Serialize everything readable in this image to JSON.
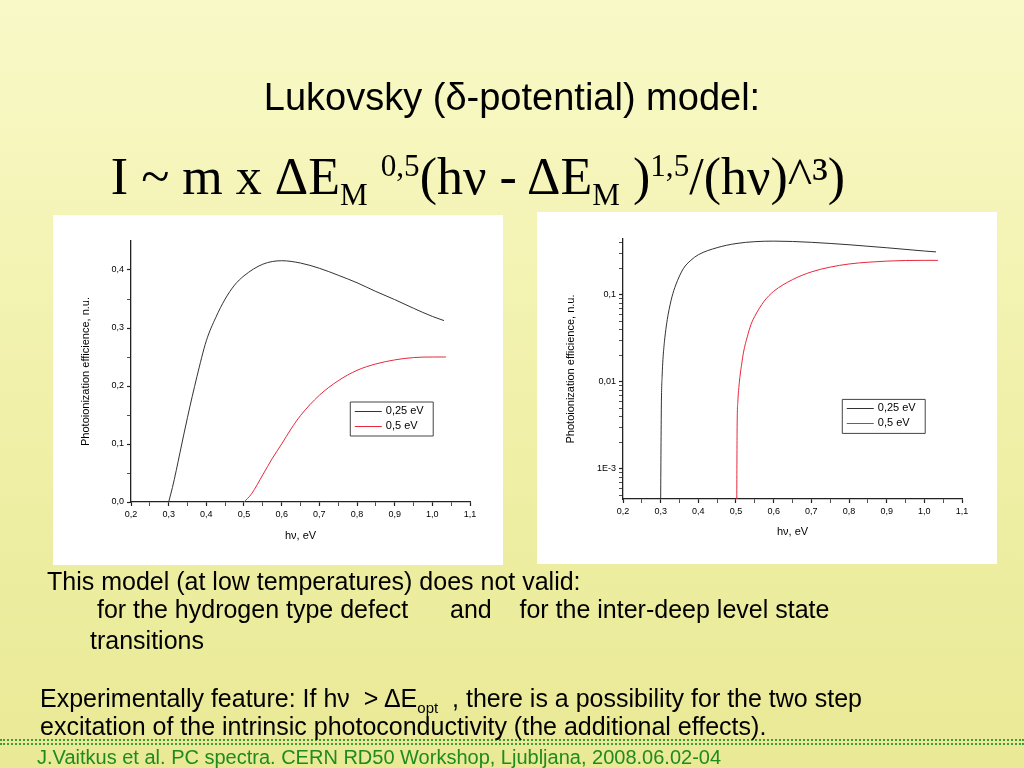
{
  "chart_data": [
    {
      "type": "other",
      "title": "Lukovsky (δ-potential) model:",
      "subtitle": "I ~ m x ΔE$_{M}$ $^{0,5}$(hν - ΔE$_{M}$ )$^{1,5}$/(hν)^³)"
    },
    {
      "type": "line",
      "xlabel": "hν, eV",
      "ylabel": "Photoionization efficience, n.u.",
      "legend": "right",
      "xlim": [
        0.2,
        1.1
      ],
      "xticks": [
        {
          "value": 0.2,
          "label": "0,2"
        },
        {
          "value": 0.25,
          "label": null
        },
        {
          "value": 0.3,
          "label": "0,3"
        },
        {
          "value": 0.35,
          "label": null
        },
        {
          "value": 0.4,
          "label": "0,4"
        },
        {
          "value": 0.45,
          "label": null
        },
        {
          "value": 0.5,
          "label": "0,5"
        },
        {
          "value": 0.55,
          "label": null
        },
        {
          "value": 0.6,
          "label": "0,6"
        },
        {
          "value": 0.65,
          "label": null
        },
        {
          "value": 0.7,
          "label": "0,7"
        },
        {
          "value": 0.75,
          "label": null
        },
        {
          "value": 0.8,
          "label": "0,8"
        },
        {
          "value": 0.85,
          "label": null
        },
        {
          "value": 0.9,
          "label": "0,9"
        },
        {
          "value": 0.95,
          "label": null
        },
        {
          "value": 1.0,
          "label": "1,0"
        },
        {
          "value": 1.05,
          "label": null
        },
        {
          "value": 1.1,
          "label": "1,1"
        }
      ],
      "ylim": [
        0,
        0.45
      ],
      "yticks": [
        {
          "value": 0,
          "label": "0,0"
        },
        {
          "value": 0.05,
          "label": null
        },
        {
          "value": 0.1,
          "label": "0,1"
        },
        {
          "value": 0.15,
          "label": null
        },
        {
          "value": 0.2,
          "label": "0,2"
        },
        {
          "value": 0.25,
          "label": null
        },
        {
          "value": 0.3,
          "label": "0,3"
        },
        {
          "value": 0.35,
          "label": null
        },
        {
          "value": 0.4,
          "label": "0,4"
        }
      ],
      "series": [
        {
          "name": "0,25 eV",
          "color": "#333333",
          "x": [
            0.3,
            0.31,
            0.32,
            0.33,
            0.35,
            0.375,
            0.4,
            0.425,
            0.45,
            0.475,
            0.5,
            0.55,
            0.6,
            0.65,
            0.7,
            0.75,
            0.8,
            0.85,
            0.9,
            0.95,
            1.0,
            1.03
          ],
          "values": [
            0,
            0.025,
            0.054,
            0.085,
            0.146,
            0.216,
            0.278,
            0.318,
            0.35,
            0.374,
            0.39,
            0.41,
            0.416,
            0.412,
            0.403,
            0.391,
            0.378,
            0.363,
            0.349,
            0.334,
            0.32,
            0.313
          ]
        },
        {
          "name": "0,5 eV",
          "color": "#e8283c",
          "x": [
            0.5,
            0.52,
            0.55,
            0.575,
            0.6,
            0.625,
            0.65,
            0.7,
            0.75,
            0.8,
            0.85,
            0.9,
            0.95,
            1.0,
            1.035
          ],
          "values": [
            0,
            0.014,
            0.047,
            0.075,
            0.1,
            0.126,
            0.149,
            0.184,
            0.209,
            0.227,
            0.238,
            0.245,
            0.249,
            0.25,
            0.25
          ]
        }
      ]
    },
    {
      "type": "line",
      "xlabel": "hν, eV",
      "ylabel": "Photoionization efficience, n.u.",
      "legend": "right",
      "log": "y",
      "xlim": [
        0.2,
        1.1
      ],
      "xticks": [
        {
          "value": 0.2,
          "label": "0,2"
        },
        {
          "value": 0.25,
          "label": null
        },
        {
          "value": 0.3,
          "label": "0,3"
        },
        {
          "value": 0.35,
          "label": null
        },
        {
          "value": 0.4,
          "label": "0,4"
        },
        {
          "value": 0.45,
          "label": null
        },
        {
          "value": 0.5,
          "label": "0,5"
        },
        {
          "value": 0.55,
          "label": null
        },
        {
          "value": 0.6,
          "label": "0,6"
        },
        {
          "value": 0.65,
          "label": null
        },
        {
          "value": 0.7,
          "label": "0,7"
        },
        {
          "value": 0.75,
          "label": null
        },
        {
          "value": 0.8,
          "label": "0,8"
        },
        {
          "value": 0.85,
          "label": null
        },
        {
          "value": 0.9,
          "label": "0,9"
        },
        {
          "value": 0.95,
          "label": null
        },
        {
          "value": 1.0,
          "label": "1,0"
        },
        {
          "value": 1.05,
          "label": null
        },
        {
          "value": 1.1,
          "label": "1,1"
        }
      ],
      "ylim": [
        0.00045,
        0.44
      ],
      "yticks": [
        {
          "value": 0.0005,
          "label": null
        },
        {
          "value": 0.0006,
          "label": null
        },
        {
          "value": 0.0007,
          "label": null
        },
        {
          "value": 0.0008,
          "label": null
        },
        {
          "value": 0.0009,
          "label": null
        },
        {
          "value": 0.001,
          "label": "1E-3"
        },
        {
          "value": 0.002,
          "label": null
        },
        {
          "value": 0.003,
          "label": null
        },
        {
          "value": 0.004,
          "label": null
        },
        {
          "value": 0.005,
          "label": null
        },
        {
          "value": 0.006,
          "label": null
        },
        {
          "value": 0.007,
          "label": null
        },
        {
          "value": 0.008,
          "label": null
        },
        {
          "value": 0.009,
          "label": null
        },
        {
          "value": 0.01,
          "label": "0,01"
        },
        {
          "value": 0.02,
          "label": null
        },
        {
          "value": 0.03,
          "label": null
        },
        {
          "value": 0.04,
          "label": null
        },
        {
          "value": 0.05,
          "label": null
        },
        {
          "value": 0.06,
          "label": null
        },
        {
          "value": 0.07,
          "label": null
        },
        {
          "value": 0.08,
          "label": null
        },
        {
          "value": 0.09,
          "label": null
        },
        {
          "value": 0.1,
          "label": "0,1"
        },
        {
          "value": 0.2,
          "label": null
        },
        {
          "value": 0.3,
          "label": null
        },
        {
          "value": 0.4,
          "label": null
        }
      ],
      "series": [
        {
          "name": "0,25 eV",
          "color": "#333333",
          "x": [
            0.3,
            0.301,
            0.302,
            0.304,
            0.306,
            0.31,
            0.315,
            0.32,
            0.33,
            0.34,
            0.36,
            0.38,
            0.4,
            0.45,
            0.5,
            0.55,
            0.6,
            0.65,
            0.7,
            0.8,
            0.9,
            1.0,
            1.03
          ],
          "values": [
            0.00045,
            0.002,
            0.006,
            0.012,
            0.018,
            0.029,
            0.044,
            0.06,
            0.095,
            0.13,
            0.2,
            0.25,
            0.29,
            0.35,
            0.39,
            0.41,
            0.416,
            0.412,
            0.403,
            0.378,
            0.349,
            0.32,
            0.313
          ]
        },
        {
          "name": "0,5 eV",
          "color": "#e8283c",
          "x": [
            0.502,
            0.503,
            0.505,
            0.508,
            0.511,
            0.515,
            0.52,
            0.53,
            0.54,
            0.55,
            0.575,
            0.6,
            0.65,
            0.7,
            0.75,
            0.8,
            0.85,
            0.9,
            0.95,
            1.0,
            1.035
          ],
          "values": [
            0.00045,
            0.003,
            0.006,
            0.009,
            0.012,
            0.016,
            0.022,
            0.033,
            0.046,
            0.057,
            0.085,
            0.11,
            0.15,
            0.184,
            0.209,
            0.227,
            0.238,
            0.245,
            0.249,
            0.25,
            0.25
          ]
        }
      ]
    },
    {
      "type": "other",
      "annotations": [
        "This model (at low temperatures) does not valid:",
        "for the hydrogen type defect      and    for the inter-deep level state transitions",
        "Experimentally feature: If hν  > ΔE$_{opt}$  , there is a possibility for the two step excitation of the intrinsic photoconductivity (the additional effects).",
        "J.Vaitkus et al. PC spectra. CERN RD50 Workshop, Ljubljana, 2008.06.02-04"
      ]
    }
  ]
}
